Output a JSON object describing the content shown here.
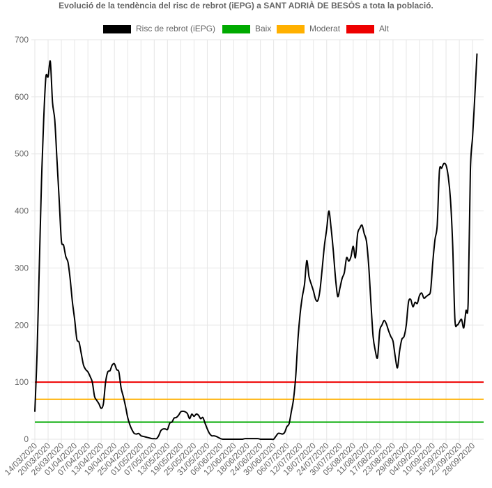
{
  "chart_data": {
    "type": "line",
    "title": "Evolució de la tendència del risc de rebrot (iEPG) a SANT ADRIÀ DE BESÒS a tota la població.",
    "xlabel": "",
    "ylabel": "",
    "ylim": [
      0,
      700
    ],
    "yticks": [
      "0",
      "100",
      "200",
      "300",
      "400",
      "500",
      "600",
      "700"
    ],
    "grid": true,
    "legend_position": "top",
    "x_start": "14/03/2020",
    "x_end": "03/10/2020",
    "x_tick_labels": [
      "14/03/2020",
      "20/03/2020",
      "26/03/2020",
      "01/04/2020",
      "07/04/2020",
      "13/04/2020",
      "19/04/2020",
      "25/04/2020",
      "01/05/2020",
      "07/05/2020",
      "13/05/2020",
      "19/05/2020",
      "25/05/2020",
      "31/05/2020",
      "06/06/2020",
      "12/06/2020",
      "18/06/2020",
      "24/06/2020",
      "30/06/2020",
      "06/07/2020",
      "12/07/2020",
      "18/07/2020",
      "24/07/2020",
      "30/07/2020",
      "05/08/2020",
      "11/08/2020",
      "17/08/2020",
      "23/08/2020",
      "29/08/2020",
      "04/09/2020",
      "10/09/2020",
      "16/09/2020",
      "22/09/2020",
      "28/09/2020"
    ],
    "series": [
      {
        "name": "Risc de rebrot (iEPG)",
        "color": "#000000",
        "points": [
          [
            "14/03/2020",
            48
          ],
          [
            "15/03/2020",
            150
          ],
          [
            "16/03/2020",
            300
          ],
          [
            "17/03/2020",
            450
          ],
          [
            "18/03/2020",
            560
          ],
          [
            "19/03/2020",
            635
          ],
          [
            "20/03/2020",
            635
          ],
          [
            "21/03/2020",
            662
          ],
          [
            "22/03/2020",
            590
          ],
          [
            "23/03/2020",
            560
          ],
          [
            "24/03/2020",
            490
          ],
          [
            "25/03/2020",
            420
          ],
          [
            "26/03/2020",
            348
          ],
          [
            "27/03/2020",
            340
          ],
          [
            "28/03/2020",
            320
          ],
          [
            "29/03/2020",
            310
          ],
          [
            "30/03/2020",
            280
          ],
          [
            "31/03/2020",
            240
          ],
          [
            "01/04/2020",
            210
          ],
          [
            "02/04/2020",
            175
          ],
          [
            "03/04/2020",
            170
          ],
          [
            "04/04/2020",
            150
          ],
          [
            "05/04/2020",
            130
          ],
          [
            "06/04/2020",
            122
          ],
          [
            "07/04/2020",
            118
          ],
          [
            "08/04/2020",
            110
          ],
          [
            "09/04/2020",
            100
          ],
          [
            "10/04/2020",
            75
          ],
          [
            "11/04/2020",
            68
          ],
          [
            "12/04/2020",
            62
          ],
          [
            "13/04/2020",
            54
          ],
          [
            "14/04/2020",
            62
          ],
          [
            "15/04/2020",
            100
          ],
          [
            "16/04/2020",
            118
          ],
          [
            "17/04/2020",
            120
          ],
          [
            "18/04/2020",
            130
          ],
          [
            "19/04/2020",
            132
          ],
          [
            "20/04/2020",
            122
          ],
          [
            "21/04/2020",
            118
          ],
          [
            "22/04/2020",
            90
          ],
          [
            "23/04/2020",
            75
          ],
          [
            "24/04/2020",
            58
          ],
          [
            "25/04/2020",
            38
          ],
          [
            "26/04/2020",
            25
          ],
          [
            "27/04/2020",
            16
          ],
          [
            "28/04/2020",
            10
          ],
          [
            "29/04/2020",
            9
          ],
          [
            "30/04/2020",
            10
          ],
          [
            "01/05/2020",
            6
          ],
          [
            "02/05/2020",
            5
          ],
          [
            "03/05/2020",
            4
          ],
          [
            "04/05/2020",
            3
          ],
          [
            "05/05/2020",
            2
          ],
          [
            "06/05/2020",
            1
          ],
          [
            "07/05/2020",
            1
          ],
          [
            "08/05/2020",
            1
          ],
          [
            "09/05/2020",
            6
          ],
          [
            "10/05/2020",
            15
          ],
          [
            "11/05/2020",
            18
          ],
          [
            "12/05/2020",
            18
          ],
          [
            "13/05/2020",
            17
          ],
          [
            "14/05/2020",
            28
          ],
          [
            "15/05/2020",
            30
          ],
          [
            "16/05/2020",
            37
          ],
          [
            "17/05/2020",
            38
          ],
          [
            "18/05/2020",
            42
          ],
          [
            "19/05/2020",
            48
          ],
          [
            "20/05/2020",
            49
          ],
          [
            "21/05/2020",
            48
          ],
          [
            "22/05/2020",
            45
          ],
          [
            "23/05/2020",
            36
          ],
          [
            "24/05/2020",
            44
          ],
          [
            "25/05/2020",
            40
          ],
          [
            "26/05/2020",
            44
          ],
          [
            "27/05/2020",
            42
          ],
          [
            "28/05/2020",
            36
          ],
          [
            "29/05/2020",
            38
          ],
          [
            "30/05/2020",
            28
          ],
          [
            "31/05/2020",
            18
          ],
          [
            "01/06/2020",
            10
          ],
          [
            "02/06/2020",
            6
          ],
          [
            "03/06/2020",
            6
          ],
          [
            "04/06/2020",
            5
          ],
          [
            "05/06/2020",
            3
          ],
          [
            "06/06/2020",
            1
          ],
          [
            "07/06/2020",
            0
          ],
          [
            "08/06/2020",
            0
          ],
          [
            "09/06/2020",
            0
          ],
          [
            "10/06/2020",
            0
          ],
          [
            "11/06/2020",
            0
          ],
          [
            "12/06/2020",
            0
          ],
          [
            "13/06/2020",
            0
          ],
          [
            "14/06/2020",
            0
          ],
          [
            "15/06/2020",
            0
          ],
          [
            "16/06/2020",
            0
          ],
          [
            "17/06/2020",
            1
          ],
          [
            "18/06/2020",
            1
          ],
          [
            "19/06/2020",
            1
          ],
          [
            "20/06/2020",
            1
          ],
          [
            "21/06/2020",
            1
          ],
          [
            "22/06/2020",
            1
          ],
          [
            "23/06/2020",
            1
          ],
          [
            "24/06/2020",
            0
          ],
          [
            "25/06/2020",
            0
          ],
          [
            "26/06/2020",
            0
          ],
          [
            "27/06/2020",
            0
          ],
          [
            "28/06/2020",
            0
          ],
          [
            "29/06/2020",
            0
          ],
          [
            "30/06/2020",
            0
          ],
          [
            "01/07/2020",
            5
          ],
          [
            "02/07/2020",
            10
          ],
          [
            "03/07/2020",
            10
          ],
          [
            "04/07/2020",
            9
          ],
          [
            "05/07/2020",
            12
          ],
          [
            "06/07/2020",
            22
          ],
          [
            "07/07/2020",
            27
          ],
          [
            "08/07/2020",
            48
          ],
          [
            "09/07/2020",
            70
          ],
          [
            "10/07/2020",
            110
          ],
          [
            "11/07/2020",
            175
          ],
          [
            "12/07/2020",
            220
          ],
          [
            "13/07/2020",
            250
          ],
          [
            "14/07/2020",
            272
          ],
          [
            "15/07/2020",
            313
          ],
          [
            "16/07/2020",
            285
          ],
          [
            "17/07/2020",
            272
          ],
          [
            "18/07/2020",
            260
          ],
          [
            "19/07/2020",
            245
          ],
          [
            "20/07/2020",
            243
          ],
          [
            "21/07/2020",
            262
          ],
          [
            "22/07/2020",
            300
          ],
          [
            "23/07/2020",
            340
          ],
          [
            "24/07/2020",
            368
          ],
          [
            "25/07/2020",
            400
          ],
          [
            "26/07/2020",
            370
          ],
          [
            "27/07/2020",
            330
          ],
          [
            "28/07/2020",
            282
          ],
          [
            "29/07/2020",
            250
          ],
          [
            "30/07/2020",
            265
          ],
          [
            "31/07/2020",
            282
          ],
          [
            "01/08/2020",
            292
          ],
          [
            "02/08/2020",
            318
          ],
          [
            "03/08/2020",
            312
          ],
          [
            "04/08/2020",
            320
          ],
          [
            "05/08/2020",
            338
          ],
          [
            "06/08/2020",
            318
          ],
          [
            "07/08/2020",
            360
          ],
          [
            "08/08/2020",
            370
          ],
          [
            "09/08/2020",
            375
          ],
          [
            "10/08/2020",
            360
          ],
          [
            "11/08/2020",
            347
          ],
          [
            "12/08/2020",
            305
          ],
          [
            "13/08/2020",
            240
          ],
          [
            "14/08/2020",
            180
          ],
          [
            "15/08/2020",
            155
          ],
          [
            "16/08/2020",
            143
          ],
          [
            "17/08/2020",
            190
          ],
          [
            "18/08/2020",
            200
          ],
          [
            "19/08/2020",
            208
          ],
          [
            "20/08/2020",
            202
          ],
          [
            "21/08/2020",
            190
          ],
          [
            "22/08/2020",
            180
          ],
          [
            "23/08/2020",
            172
          ],
          [
            "24/08/2020",
            145
          ],
          [
            "25/08/2020",
            125
          ],
          [
            "26/08/2020",
            155
          ],
          [
            "27/08/2020",
            175
          ],
          [
            "28/08/2020",
            180
          ],
          [
            "29/08/2020",
            200
          ],
          [
            "30/08/2020",
            240
          ],
          [
            "31/08/2020",
            245
          ],
          [
            "01/09/2020",
            232
          ],
          [
            "02/09/2020",
            240
          ],
          [
            "03/09/2020",
            238
          ],
          [
            "04/09/2020",
            252
          ],
          [
            "05/09/2020",
            256
          ],
          [
            "06/09/2020",
            247
          ],
          [
            "07/09/2020",
            250
          ],
          [
            "08/09/2020",
            253
          ],
          [
            "09/09/2020",
            260
          ],
          [
            "10/09/2020",
            310
          ],
          [
            "11/09/2020",
            350
          ],
          [
            "12/09/2020",
            375
          ],
          [
            "13/09/2020",
            470
          ],
          [
            "14/09/2020",
            475
          ],
          [
            "15/09/2020",
            483
          ],
          [
            "16/09/2020",
            480
          ],
          [
            "17/09/2020",
            460
          ],
          [
            "18/09/2020",
            420
          ],
          [
            "19/09/2020",
            340
          ],
          [
            "20/09/2020",
            210
          ],
          [
            "21/09/2020",
            200
          ],
          [
            "22/09/2020",
            205
          ],
          [
            "23/09/2020",
            210
          ],
          [
            "24/09/2020",
            195
          ],
          [
            "25/09/2020",
            225
          ],
          [
            "26/09/2020",
            240
          ],
          [
            "27/09/2020",
            470
          ],
          [
            "28/09/2020",
            530
          ],
          [
            "29/09/2020",
            600
          ],
          [
            "30/09/2020",
            676
          ]
        ]
      },
      {
        "name": "Baix",
        "color": "#00aa00",
        "constant": 30
      },
      {
        "name": "Moderat",
        "color": "#ffb000",
        "constant": 70
      },
      {
        "name": "Alt",
        "color": "#ee0000",
        "constant": 100
      }
    ]
  }
}
